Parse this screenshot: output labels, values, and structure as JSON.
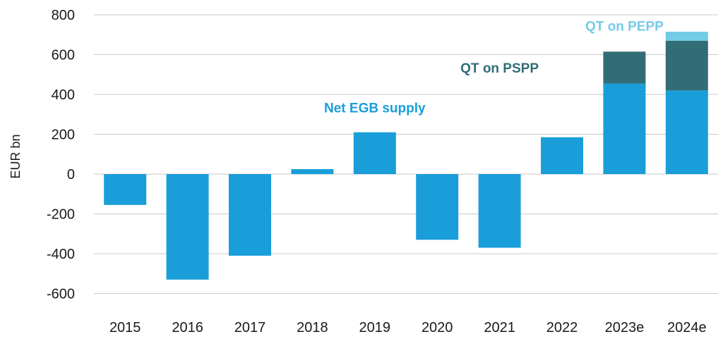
{
  "chart_data": {
    "type": "bar",
    "stacked": true,
    "title": "",
    "xlabel": "",
    "ylabel": "EUR bn",
    "ylim": [
      -600,
      800
    ],
    "yticks": [
      800,
      600,
      400,
      200,
      0,
      -200,
      -400,
      -600
    ],
    "grid": true,
    "categories": [
      "2015",
      "2016",
      "2017",
      "2018",
      "2019",
      "2020",
      "2021",
      "2022",
      "2023e",
      "2024e"
    ],
    "series": [
      {
        "name": "Net EGB supply",
        "color": "#1a9ed9",
        "values": [
          -155,
          -530,
          -410,
          25,
          210,
          -330,
          -370,
          185,
          455,
          420
        ]
      },
      {
        "name": "QT on PSPP",
        "color": "#326d77",
        "values": [
          0,
          0,
          0,
          0,
          0,
          0,
          0,
          0,
          160,
          250
        ]
      },
      {
        "name": "QT on PEPP",
        "color": "#74cbe6",
        "values": [
          0,
          0,
          0,
          0,
          0,
          0,
          0,
          0,
          0,
          45
        ]
      }
    ],
    "annotations": [
      {
        "text": "Net EGB supply",
        "color": "#1a9ed9",
        "x": "2019",
        "y": 310
      },
      {
        "text": "QT on PSPP",
        "color": "#326d77",
        "x": "2021",
        "y": 510
      },
      {
        "text": "QT on PEPP",
        "color": "#74cbe6",
        "x": "2023e",
        "y": 720
      }
    ]
  }
}
